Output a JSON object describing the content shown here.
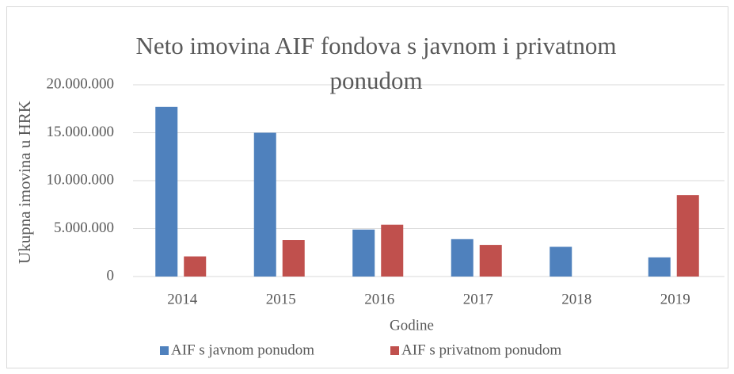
{
  "chart_data": {
    "type": "bar",
    "title": "Neto imovina AIF fondova s javnom i privatnom ponudom",
    "xlabel": "Godine",
    "ylabel": "Ukupna imovina u HRK",
    "categories": [
      "2014",
      "2015",
      "2016",
      "2017",
      "2018",
      "2019"
    ],
    "series": [
      {
        "name": "AIF s javnom ponudom",
        "color": "#4f81bd",
        "values": [
          17700000,
          15000000,
          4900000,
          3900000,
          3100000,
          2000000
        ]
      },
      {
        "name": "AIF s privatnom ponudom",
        "color": "#c0504d",
        "values": [
          2100000,
          3800000,
          5400000,
          3300000,
          0,
          8500000
        ]
      }
    ],
    "ylim": [
      0,
      20000000
    ],
    "yticks": [
      0,
      {
        "value": 5000000,
        "label": "5.000.000"
      },
      {
        "value": 10000000,
        "label": "10.000.000"
      },
      {
        "value": 15000000,
        "label": "15.000.000"
      },
      {
        "value": 20000000,
        "label": "20.000.000"
      }
    ],
    "grid": true,
    "legend": "bottom"
  }
}
